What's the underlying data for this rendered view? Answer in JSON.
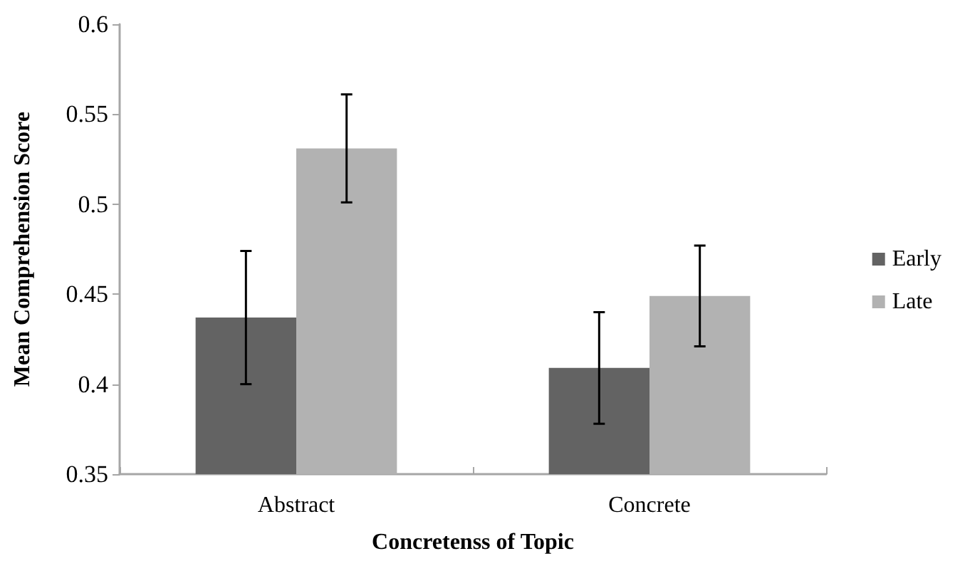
{
  "chart_data": {
    "type": "bar",
    "xlabel": "Concretenss of Topic",
    "ylabel": "Mean Comprehension Score",
    "categories": [
      "Abstract",
      "Concrete"
    ],
    "series": [
      {
        "name": "Early",
        "color": "#636363",
        "values": [
          0.437,
          0.409
        ],
        "errors": [
          0.037,
          0.031
        ]
      },
      {
        "name": "Late",
        "color": "#b2b2b2",
        "values": [
          0.531,
          0.449
        ],
        "errors": [
          0.03,
          0.028
        ]
      }
    ],
    "ylim": [
      0.35,
      0.6
    ],
    "yticks": [
      0.35,
      0.4,
      0.45,
      0.5,
      0.55,
      0.6
    ],
    "grid": false,
    "legend": "right"
  }
}
